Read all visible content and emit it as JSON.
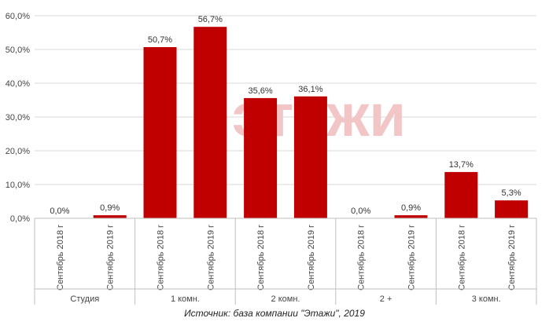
{
  "chart_data": {
    "type": "bar",
    "groups": [
      "Студия",
      "1 комн.",
      "2 комн.",
      "2 +",
      "3 комн."
    ],
    "categories": [
      "Сентябрь 2018 г",
      "Сентябрь 2019 г",
      "Сентябрь 2018 г",
      "Сентябрь 2019 г",
      "Сентябрь 2018 г",
      "Сентябрь 2019 г",
      "Сентябрь 2018 г",
      "Сентябрь 2019 г",
      "Сентябрь 2018 г",
      "Сентябрь 2019 г"
    ],
    "values": [
      0.0,
      0.9,
      50.7,
      56.7,
      35.6,
      36.1,
      0.0,
      0.9,
      13.7,
      5.3
    ],
    "value_labels": [
      "0,0%",
      "0,9%",
      "50,7%",
      "56,7%",
      "35,6%",
      "36,1%",
      "0,0%",
      "0,9%",
      "13,7%",
      "5,3%"
    ],
    "ylim": [
      0,
      60
    ],
    "yticks": [
      "0,0%",
      "10,0%",
      "20,0%",
      "30,0%",
      "40,0%",
      "50,0%",
      "60,0%"
    ],
    "grid": true,
    "legend": "none",
    "bar_color": "#c00000",
    "title": "",
    "xlabel": "",
    "ylabel": ""
  },
  "watermark": "этажи",
  "source": "Источник: база компании \"Этажи\", 2019"
}
